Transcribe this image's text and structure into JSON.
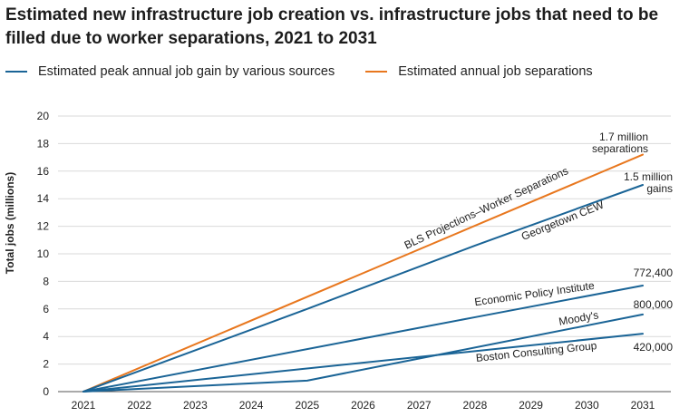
{
  "chart_data": {
    "type": "line",
    "title": "Estimated new infrastructure job creation vs. infrastructure jobs that need to be filled due to worker separations, 2021 to 2031",
    "ylabel": "Total jobs (millions)",
    "xlabel": "",
    "ylim": [
      0,
      20
    ],
    "yticks": [
      "0",
      "2",
      "4",
      "6",
      "8",
      "10",
      "12",
      "14",
      "16",
      "18",
      "20"
    ],
    "xticks": [
      "2021",
      "2022",
      "2023",
      "2024",
      "2025",
      "2026",
      "2027",
      "2028",
      "2029",
      "2030",
      "2031"
    ],
    "grid": true,
    "legend": {
      "placement": "top",
      "entries": [
        {
          "label": "Estimated peak annual job gain by various sources",
          "color": "#1a6496"
        },
        {
          "label": "Estimated annual job separations",
          "color": "#e8771e"
        }
      ]
    },
    "series": [
      {
        "name": "BLS Projections–Worker Separations",
        "color": "#e8771e",
        "x": [
          2021,
          2031
        ],
        "y": [
          0,
          17.2
        ]
      },
      {
        "name": "Georgetown CEW",
        "color": "#1a6496",
        "x": [
          2021,
          2025,
          2028,
          2031
        ],
        "y": [
          0,
          6,
          10.6,
          15
        ]
      },
      {
        "name": "Economic Policy Institute",
        "color": "#1a6496",
        "x": [
          2021,
          2028,
          2031
        ],
        "y": [
          0,
          5.4,
          7.7
        ]
      },
      {
        "name": "Moody's",
        "color": "#1a6496",
        "x": [
          2021,
          2025,
          2031
        ],
        "y": [
          0,
          0.8,
          5.6
        ]
      },
      {
        "name": "Boston Consulting Group",
        "color": "#1a6496",
        "x": [
          2021,
          2031
        ],
        "y": [
          0,
          4.2
        ]
      }
    ],
    "annotations": {
      "end_labels": [
        {
          "text": "1.7 million",
          "line2": "separations"
        },
        {
          "text": "1.5 million",
          "line2": "gains"
        },
        {
          "text": "772,400"
        },
        {
          "text": "800,000"
        },
        {
          "text": "420,000"
        }
      ]
    }
  }
}
